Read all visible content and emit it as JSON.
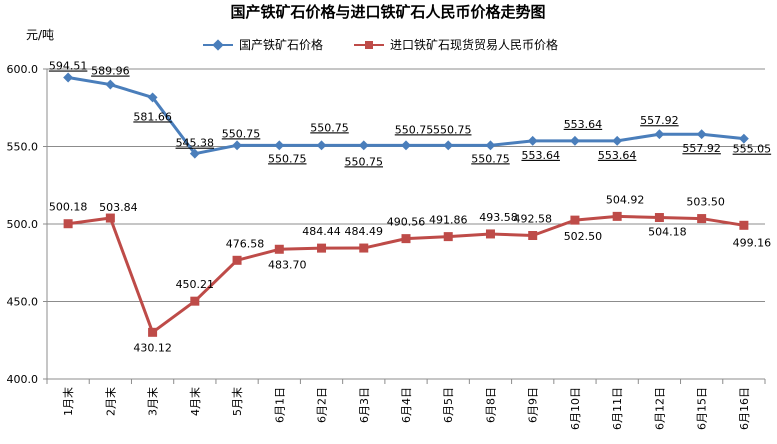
{
  "chart_data": {
    "type": "line",
    "title": "国产铁矿石价格与进口铁矿石人民币价格走势图",
    "ylabel": "元/吨",
    "ylim": [
      400,
      600
    ],
    "yticks": [
      "400.0",
      "450.0",
      "500.0",
      "550.0",
      "600.0"
    ],
    "grid": true,
    "legend_position": "top",
    "categories": [
      "1月末",
      "2月末",
      "3月末",
      "4月末",
      "5月末",
      "6月1日",
      "6月2日",
      "6月3日",
      "6月4日",
      "6月5日",
      "6月8日",
      "6月9日",
      "6月10日",
      "6月11日",
      "6月12日",
      "6月15日",
      "6月16日"
    ],
    "series": [
      {
        "name": "国产铁矿石价格",
        "color": "#4a7ebb",
        "marker": "diamond",
        "values": [
          594.51,
          589.96,
          581.66,
          545.38,
          550.75,
          550.75,
          550.75,
          550.75,
          550.75,
          550.75,
          550.75,
          553.64,
          553.64,
          553.64,
          557.92,
          557.92,
          555.05
        ],
        "labels": [
          "594.51",
          "589.96",
          "581.66",
          "545.38",
          "550.75",
          "550.75",
          "550.75",
          "550.75",
          "550.75",
          "550.75",
          "550.75",
          "553.64",
          "553.64",
          "553.64",
          "557.92",
          "557.92",
          "555.05"
        ]
      },
      {
        "name": "进口铁矿石现货贸易人民币价格",
        "color": "#be4b48",
        "marker": "square",
        "values": [
          500.18,
          503.84,
          430.12,
          450.21,
          476.58,
          483.7,
          484.44,
          484.49,
          490.56,
          491.86,
          493.58,
          492.58,
          502.5,
          504.92,
          504.18,
          503.5,
          499.16
        ],
        "labels": [
          "500.18",
          "503.84",
          "430.12",
          "450.21",
          "476.58",
          "483.70",
          "484.44",
          "484.49",
          "490.56",
          "491.86",
          "493.58",
          "492.58",
          "502.50",
          "504.92",
          "504.18",
          "503.50",
          "499.16"
        ]
      }
    ]
  }
}
